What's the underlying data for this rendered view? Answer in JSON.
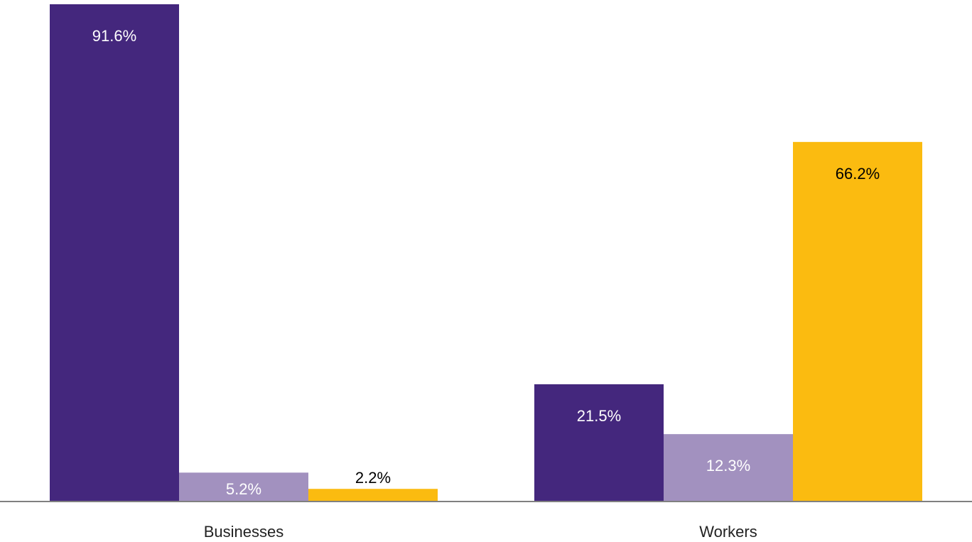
{
  "chart_data": {
    "type": "bar",
    "categories": [
      "Businesses",
      "Workers"
    ],
    "series": [
      {
        "color": "#44277d",
        "label_color": "#ffffff",
        "values": [
          91.6,
          21.5
        ],
        "labels": [
          "91.6%",
          "21.5%"
        ]
      },
      {
        "color": "#a291bf",
        "label_color": "#ffffff",
        "values": [
          5.2,
          12.3
        ],
        "labels": [
          "5.2%",
          "12.3%"
        ]
      },
      {
        "color": "#fbbb10",
        "label_color": "#000000",
        "values": [
          2.2,
          66.2
        ],
        "labels": [
          "2.2%",
          "66.2%"
        ]
      }
    ],
    "ylim": [
      0,
      92
    ],
    "legend": "none",
    "grid": false,
    "baseline_color": "#808080"
  }
}
